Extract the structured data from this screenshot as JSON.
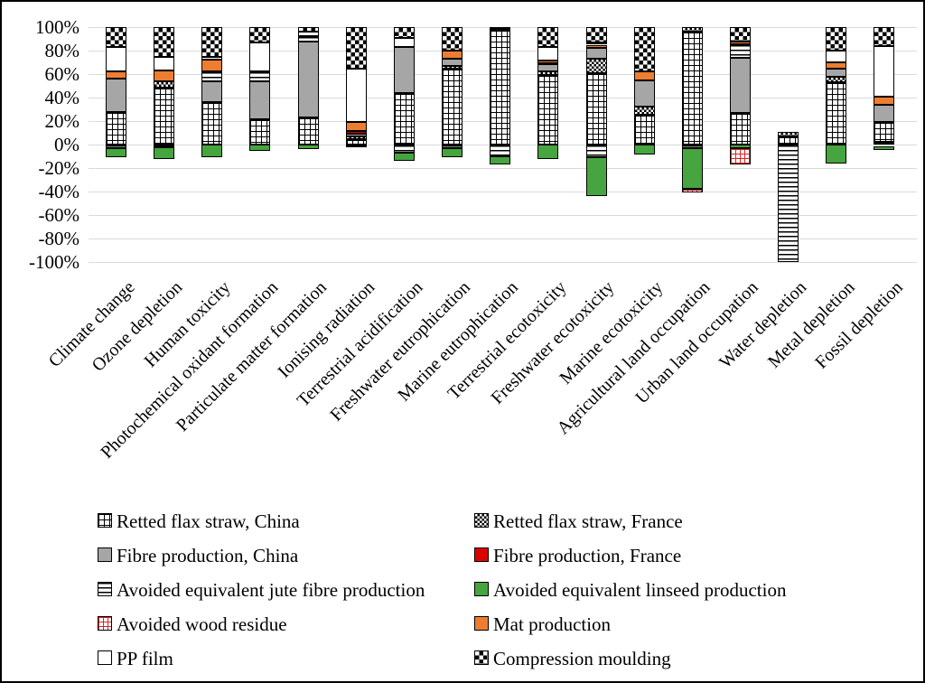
{
  "figure": {
    "background": "#ffffff",
    "border_color": "#000000",
    "gridline_color": "#d9d9d9"
  },
  "y_axis": {
    "tick_labels": [
      "100%",
      "80%",
      "60%",
      "40%",
      "20%",
      "0%",
      "-20%",
      "-40%",
      "-60%",
      "-80%",
      "-100%"
    ],
    "tick_values": [
      100,
      80,
      60,
      40,
      20,
      0,
      -20,
      -40,
      -60,
      -80,
      -100
    ]
  },
  "chart_data": {
    "type": "bar",
    "subtype": "stacked-diverging-percent",
    "title": "",
    "xlabel": "",
    "ylabel": "",
    "ylim": [
      -100,
      100
    ],
    "ytick_step": 20,
    "grid": true,
    "legend_position": "bottom-two-columns",
    "categories": [
      "Climate change",
      "Ozone depletion",
      "Human toxicity",
      "Photochemical oxidant formation",
      "Particulate matter formation",
      "Ionising radiation",
      "Terrestrial acidification",
      "Freshwater eutrophication",
      "Marine eutrophication",
      "Terrestrial ecotoxicity",
      "Freshwater ecotoxicity",
      "Marine ecotoxicity",
      "Agricultural land occupation",
      "Urban land occupation",
      "Water depletion",
      "Metal depletion",
      "Fossil depletion"
    ],
    "series": [
      {
        "key": "retted_china",
        "name": "Retted flax straw, China",
        "pattern": "square-grid-hatch",
        "color": "#000000 on #ffffff"
      },
      {
        "key": "retted_france",
        "name": "Retted flax straw, France",
        "pattern": "fine-checker",
        "color": "#000000 on #ffffff"
      },
      {
        "key": "fibre_china",
        "name": "Fibre production, China",
        "pattern": "solid",
        "color": "#a6a6a6"
      },
      {
        "key": "fibre_france",
        "name": "Fibre production, France",
        "pattern": "solid",
        "color": "#dd0000"
      },
      {
        "key": "jute",
        "name": "Avoided equivalent jute fibre production",
        "pattern": "horizontal-lines",
        "color": "#000000 on #ffffff"
      },
      {
        "key": "linseed",
        "name": "Avoided equivalent linseed production",
        "pattern": "solid",
        "color": "#46a53e"
      },
      {
        "key": "wood",
        "name": "Avoided wood residue",
        "pattern": "red-grid-hatch",
        "color": "#dd2222 on #ffffff"
      },
      {
        "key": "mat",
        "name": "Mat production",
        "pattern": "solid",
        "color": "#ed7d31"
      },
      {
        "key": "pp_film",
        "name": "PP film",
        "pattern": "solid",
        "color": "#ffffff"
      },
      {
        "key": "compression",
        "name": "Compression moulding",
        "pattern": "coarse-checker",
        "color": "#000000 on #ffffff"
      }
    ],
    "bars": [
      {
        "category": "Climate change",
        "segments": [
          {
            "series": "retted_china",
            "from": 0,
            "to": 28
          },
          {
            "series": "fibre_china",
            "from": 28,
            "to": 56
          },
          {
            "series": "mat",
            "from": 56,
            "to": 62
          },
          {
            "series": "pp_film",
            "from": 62,
            "to": 83
          },
          {
            "series": "compression",
            "from": 83,
            "to": 100
          },
          {
            "series": "jute",
            "from": 0,
            "to": -3
          },
          {
            "series": "linseed",
            "from": -3,
            "to": -11
          }
        ]
      },
      {
        "category": "Ozone depletion",
        "segments": [
          {
            "series": "retted_china",
            "from": 0,
            "to": 48.5
          },
          {
            "series": "retted_france",
            "from": 48.5,
            "to": 54
          },
          {
            "series": "mat",
            "from": 54,
            "to": 63
          },
          {
            "series": "pp_film",
            "from": 63,
            "to": 75
          },
          {
            "series": "compression",
            "from": 75,
            "to": 100
          },
          {
            "series": "jute",
            "from": 0,
            "to": -2.5
          },
          {
            "series": "linseed",
            "from": -2.5,
            "to": -12
          }
        ]
      },
      {
        "category": "Human toxicity",
        "segments": [
          {
            "series": "retted_china",
            "from": 0,
            "to": 36
          },
          {
            "series": "fibre_china",
            "from": 36,
            "to": 54
          },
          {
            "series": "jute",
            "from": 54,
            "to": 62
          },
          {
            "series": "mat",
            "from": 62,
            "to": 72
          },
          {
            "series": "pp_film",
            "from": 72,
            "to": 75
          },
          {
            "series": "compression",
            "from": 75,
            "to": 100
          },
          {
            "series": "linseed",
            "from": 0,
            "to": -10.5
          }
        ]
      },
      {
        "category": "Photochemical oxidant formation",
        "segments": [
          {
            "series": "retted_china",
            "from": 0,
            "to": 21.5
          },
          {
            "series": "fibre_china",
            "from": 21.5,
            "to": 54
          },
          {
            "series": "jute",
            "from": 54,
            "to": 62.5
          },
          {
            "series": "pp_film",
            "from": 62.5,
            "to": 87
          },
          {
            "series": "compression",
            "from": 87,
            "to": 100
          },
          {
            "series": "linseed",
            "from": 0,
            "to": -5
          }
        ]
      },
      {
        "category": "Particulate matter formation",
        "segments": [
          {
            "series": "retted_china",
            "from": 0,
            "to": 23
          },
          {
            "series": "fibre_china",
            "from": 23,
            "to": 88
          },
          {
            "series": "jute",
            "from": 88,
            "to": 92
          },
          {
            "series": "pp_film",
            "from": 92,
            "to": 96.5
          },
          {
            "series": "compression",
            "from": 96.5,
            "to": 100
          },
          {
            "series": "linseed",
            "from": 0,
            "to": -4
          }
        ]
      },
      {
        "category": "Ionising radiation",
        "segments": [
          {
            "series": "retted_china",
            "from": 0,
            "to": 4.5
          },
          {
            "series": "retted_france",
            "from": 4.5,
            "to": 7
          },
          {
            "series": "fibre_china",
            "from": 7,
            "to": 9.5
          },
          {
            "series": "fibre_france",
            "from": 9.5,
            "to": 11.5
          },
          {
            "series": "mat",
            "from": 11.5,
            "to": 19
          },
          {
            "series": "pp_film",
            "from": 19,
            "to": 65
          },
          {
            "series": "compression",
            "from": 65,
            "to": 100
          },
          {
            "series": "jute",
            "from": 0,
            "to": -2.5
          }
        ]
      },
      {
        "category": "Terrestrial acidification",
        "segments": [
          {
            "series": "retted_china",
            "from": 0,
            "to": 44
          },
          {
            "series": "fibre_china",
            "from": 44,
            "to": 83
          },
          {
            "series": "pp_film",
            "from": 83,
            "to": 91
          },
          {
            "series": "compression",
            "from": 91,
            "to": 100
          },
          {
            "series": "jute",
            "from": 0,
            "to": -7
          },
          {
            "series": "linseed",
            "from": -7,
            "to": -14
          }
        ]
      },
      {
        "category": "Freshwater eutrophication",
        "segments": [
          {
            "series": "retted_china",
            "from": 0,
            "to": 64.5
          },
          {
            "series": "retted_france",
            "from": 64.5,
            "to": 67
          },
          {
            "series": "fibre_china",
            "from": 67,
            "to": 73
          },
          {
            "series": "mat",
            "from": 73,
            "to": 80
          },
          {
            "series": "compression",
            "from": 80,
            "to": 100
          },
          {
            "series": "jute",
            "from": 0,
            "to": -3
          },
          {
            "series": "linseed",
            "from": -3,
            "to": -11
          }
        ]
      },
      {
        "category": "Marine eutrophication",
        "segments": [
          {
            "series": "retted_china",
            "from": 0,
            "to": 97.5
          },
          {
            "series": "pp_film",
            "from": 97.5,
            "to": 99
          },
          {
            "series": "compression",
            "from": 99,
            "to": 100
          },
          {
            "series": "jute",
            "from": 0,
            "to": -10
          },
          {
            "series": "linseed",
            "from": -10,
            "to": -17
          }
        ]
      },
      {
        "category": "Terrestrial ecotoxicity",
        "segments": [
          {
            "series": "retted_china",
            "from": 0,
            "to": 59
          },
          {
            "series": "retted_france",
            "from": 59,
            "to": 62.5
          },
          {
            "series": "fibre_china",
            "from": 62.5,
            "to": 68.5
          },
          {
            "series": "fibre_france",
            "from": 68.5,
            "to": 69.5
          },
          {
            "series": "mat",
            "from": 69.5,
            "to": 71.5
          },
          {
            "series": "pp_film",
            "from": 71.5,
            "to": 83
          },
          {
            "series": "compression",
            "from": 83,
            "to": 100
          },
          {
            "series": "linseed",
            "from": 0,
            "to": -12.5
          }
        ]
      },
      {
        "category": "Freshwater ecotoxicity",
        "segments": [
          {
            "series": "retted_china",
            "from": 0,
            "to": 61
          },
          {
            "series": "retted_france",
            "from": 61,
            "to": 73
          },
          {
            "series": "fibre_china",
            "from": 73,
            "to": 82
          },
          {
            "series": "mat",
            "from": 82,
            "to": 85
          },
          {
            "series": "pp_film",
            "from": 85,
            "to": 87
          },
          {
            "series": "compression",
            "from": 87,
            "to": 100
          },
          {
            "series": "jute",
            "from": 0,
            "to": -11
          },
          {
            "series": "linseed",
            "from": -11,
            "to": -44
          }
        ]
      },
      {
        "category": "Marine ecotoxicity",
        "segments": [
          {
            "series": "retted_china",
            "from": 0,
            "to": 25.5
          },
          {
            "series": "retted_france",
            "from": 25.5,
            "to": 32
          },
          {
            "series": "fibre_china",
            "from": 32,
            "to": 55
          },
          {
            "series": "mat",
            "from": 55,
            "to": 62.5
          },
          {
            "series": "compression",
            "from": 62.5,
            "to": 100
          },
          {
            "series": "linseed",
            "from": 0,
            "to": -8.5
          }
        ]
      },
      {
        "category": "Agricultural land occupation",
        "segments": [
          {
            "series": "retted_china",
            "from": 0,
            "to": 96
          },
          {
            "series": "retted_france",
            "from": 96,
            "to": 100
          },
          {
            "series": "jute",
            "from": 0,
            "to": -3
          },
          {
            "series": "linseed",
            "from": -3,
            "to": -38
          },
          {
            "series": "wood",
            "from": -38,
            "to": -41
          }
        ]
      },
      {
        "category": "Urban land occupation",
        "segments": [
          {
            "series": "retted_china",
            "from": 0,
            "to": 27
          },
          {
            "series": "fibre_china",
            "from": 27,
            "to": 74
          },
          {
            "series": "jute",
            "from": 74,
            "to": 85.5
          },
          {
            "series": "mat",
            "from": 85.5,
            "to": 88
          },
          {
            "series": "compression",
            "from": 88,
            "to": 100
          },
          {
            "series": "linseed",
            "from": 0,
            "to": -3
          },
          {
            "series": "wood",
            "from": -3,
            "to": -17
          }
        ]
      },
      {
        "category": "Water depletion",
        "segments": [
          {
            "series": "retted_china",
            "from": 0,
            "to": 7
          },
          {
            "series": "retted_france",
            "from": 7,
            "to": 10.5
          },
          {
            "series": "jute",
            "from": 0,
            "to": -100
          }
        ]
      },
      {
        "category": "Metal depletion",
        "segments": [
          {
            "series": "retted_china",
            "from": 0,
            "to": 53
          },
          {
            "series": "retted_france",
            "from": 53,
            "to": 57.5
          },
          {
            "series": "fibre_china",
            "from": 57.5,
            "to": 65
          },
          {
            "series": "mat",
            "from": 65,
            "to": 70
          },
          {
            "series": "pp_film",
            "from": 70,
            "to": 80
          },
          {
            "series": "compression",
            "from": 80,
            "to": 100
          },
          {
            "series": "linseed",
            "from": 0,
            "to": -16
          }
        ]
      },
      {
        "category": "Fossil depletion",
        "segments": [
          {
            "series": "jute",
            "from": 0,
            "to": 2
          },
          {
            "series": "retted_china",
            "from": 2,
            "to": 19
          },
          {
            "series": "fibre_china",
            "from": 19,
            "to": 34
          },
          {
            "series": "mat",
            "from": 34,
            "to": 41
          },
          {
            "series": "pp_film",
            "from": 41,
            "to": 84
          },
          {
            "series": "compression",
            "from": 84,
            "to": 100
          },
          {
            "series": "linseed",
            "from": -1.5,
            "to": -5
          }
        ]
      }
    ]
  },
  "legend": {
    "columns": [
      [
        {
          "series": "retted_china",
          "label": "Retted flax straw, China"
        },
        {
          "series": "fibre_china",
          "label": "Fibre production, China"
        },
        {
          "series": "jute",
          "label": "Avoided equivalent jute fibre production"
        },
        {
          "series": "wood",
          "label": "Avoided wood residue"
        },
        {
          "series": "pp_film",
          "label": "PP film"
        }
      ],
      [
        {
          "series": "retted_france",
          "label": "Retted flax straw, France"
        },
        {
          "series": "fibre_france",
          "label": "Fibre production, France"
        },
        {
          "series": "linseed",
          "label": "Avoided equivalent linseed production"
        },
        {
          "series": "mat",
          "label": "Mat production"
        },
        {
          "series": "compression",
          "label": "Compression moulding"
        }
      ]
    ]
  }
}
